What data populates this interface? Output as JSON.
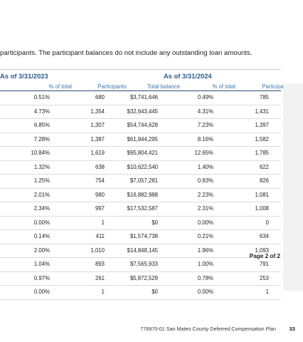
{
  "intro_text": "participants. The participant balances do not include any outstanding loan amounts.",
  "groups": [
    {
      "label": "As of 3/31/2023"
    },
    {
      "label": "As of 3/31/2024"
    }
  ],
  "columns": [
    "% of total",
    "Participants",
    "Total balance",
    "% of total",
    "Participants"
  ],
  "rows": [
    [
      "0.51%",
      "680",
      "$3,741,646",
      "0.49%",
      "785"
    ],
    [
      "4.73%",
      "1,354",
      "$32,643,445",
      "4.31%",
      "1,431"
    ],
    [
      "6.85%",
      "1,307",
      "$54,744,628",
      "7.23%",
      "1,397"
    ],
    [
      "7.28%",
      "1,387",
      "$61,844,295",
      "8.16%",
      "1,582"
    ],
    [
      "10.84%",
      "1,619",
      "$95,804,421",
      "12.65%",
      "1,785"
    ],
    [
      "1.32%",
      "638",
      "$10,622,540",
      "1.40%",
      "622"
    ],
    [
      "1.25%",
      "754",
      "$7,057,281",
      "0.93%",
      "826"
    ],
    [
      "2.01%",
      "980",
      "$16,882,988",
      "2.23%",
      "1,081"
    ],
    [
      "2.34%",
      "997",
      "$17,532,587",
      "2.31%",
      "1,008"
    ],
    [
      "0.00%",
      "1",
      "$0",
      "0.00%",
      "0"
    ],
    [
      "0.14%",
      "411",
      "$1,574,738",
      "0.21%",
      "634"
    ],
    [
      "2.00%",
      "1,010",
      "$14,848,145",
      "1.96%",
      "1,093"
    ],
    [
      "1.04%",
      "893",
      "$7,565,933",
      "1.00%",
      "791"
    ],
    [
      "0.97%",
      "261",
      "$5,872,529",
      "0.78%",
      "253"
    ],
    [
      "0.00%",
      "1",
      "$0",
      "0.00%",
      "1"
    ]
  ],
  "page_of": "Page 2 of 2",
  "footer": "776970-01 San Mateo County Deferred Compensation Plan",
  "page_number": "33",
  "colors": {
    "header_blue": "#2a5b8f",
    "column_blue": "#3d76ad",
    "sidebar": "#f2f2f2"
  }
}
